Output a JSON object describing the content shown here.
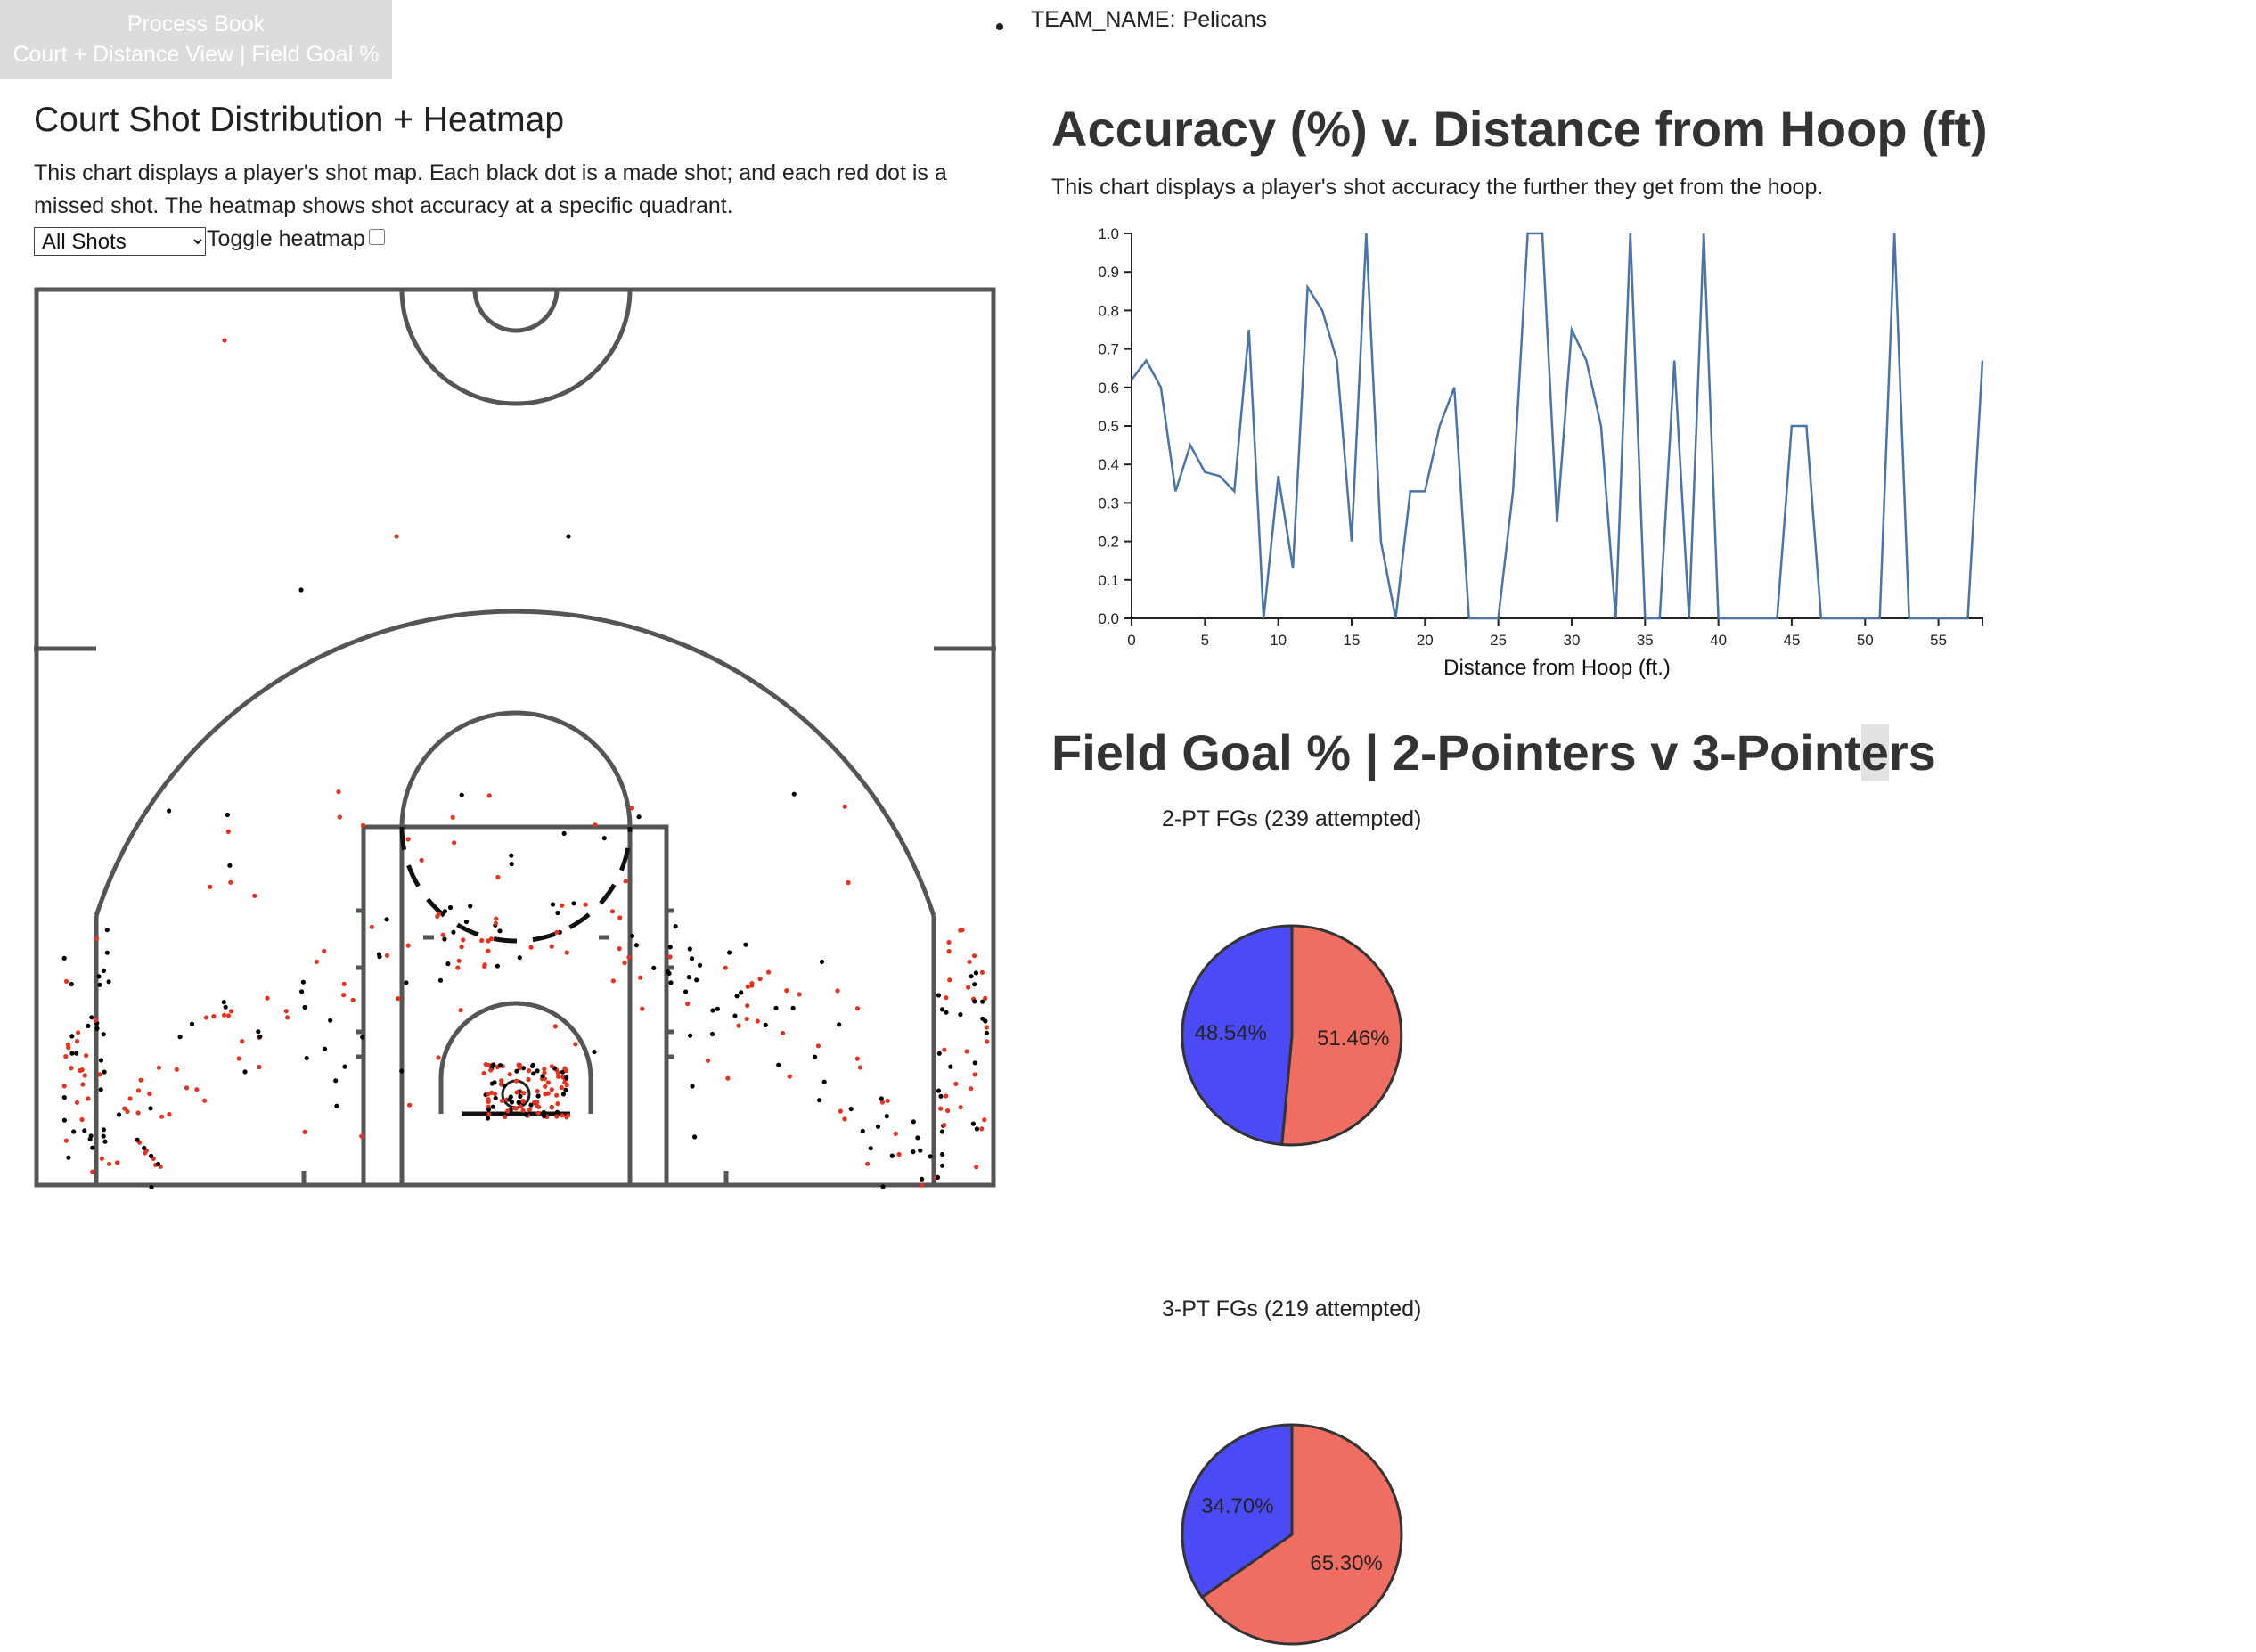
{
  "nav": {
    "process_book": "Process Book",
    "views_link": "Court + Distance View | Field Goal %"
  },
  "team": {
    "label": "TEAM_NAME:",
    "value": "Pelicans"
  },
  "court_section": {
    "title": "Court Shot Distribution + Heatmap",
    "description": "This chart displays a player's shot map. Each black dot is a made shot; and each red dot is a missed shot. The heatmap shows shot accuracy at a specific quadrant.",
    "filter_selected": "All Shots",
    "toggle_label": "Toggle heatmap",
    "toggle_checked": false,
    "made_color": "#000000",
    "missed_color": "#e8321e"
  },
  "accuracy_section": {
    "title": "Accuracy (%) v. Distance from Hoop (ft)",
    "description": "This chart displays a player's shot accuracy the further they get from the hoop."
  },
  "fg_section": {
    "title_main": "Field Goal % | 2-Pointers v 3-Point",
    "title_highlight": "e",
    "title_tail": "rs",
    "two_pt_title": "2-PT FGs (239 attempted)",
    "three_pt_title": "3-PT FGs (219 attempted)"
  },
  "chart_data": [
    {
      "type": "line",
      "xlabel": "Distance from Hoop (ft.)",
      "ylabel": "",
      "xlim": [
        0,
        58
      ],
      "ylim": [
        0,
        1
      ],
      "x_ticks": [
        "0",
        "5",
        "10",
        "15",
        "20",
        "25",
        "30",
        "35",
        "40",
        "45",
        "50",
        "55"
      ],
      "y_ticks": [
        "0.0",
        "0.1",
        "0.2",
        "0.3",
        "0.4",
        "0.5",
        "0.6",
        "0.7",
        "0.8",
        "0.9",
        "1.0"
      ],
      "color": "#4a74a8",
      "series": [
        {
          "x": [
            0,
            1,
            2,
            3,
            4,
            5,
            6,
            7,
            8,
            9,
            10,
            11,
            12,
            13,
            14,
            15,
            16,
            17,
            18,
            19,
            20,
            21,
            22,
            23,
            24,
            25,
            26,
            27,
            28,
            29,
            30,
            31,
            32,
            33,
            34,
            35,
            36,
            37,
            38,
            39,
            40,
            41,
            42,
            43,
            44,
            45,
            46,
            47,
            48,
            49,
            50,
            51,
            52,
            53,
            54,
            55,
            56,
            57,
            58
          ],
          "y": [
            0.62,
            0.67,
            0.6,
            0.33,
            0.45,
            0.38,
            0.37,
            0.33,
            0.75,
            0,
            0.37,
            0.13,
            0.86,
            0.8,
            0.67,
            0.2,
            1,
            0.2,
            0,
            0.33,
            0.33,
            0.5,
            0.6,
            0,
            0,
            0,
            0.33,
            1,
            1,
            0.25,
            0.75,
            0.67,
            0.5,
            0,
            1,
            0,
            0,
            0.67,
            0,
            1,
            0,
            0,
            0,
            0,
            0,
            0.5,
            0.5,
            0,
            0,
            0,
            0,
            0,
            1,
            0,
            0,
            0,
            0,
            0,
            0.67
          ]
        }
      ]
    },
    {
      "type": "pie",
      "title": "2-PT FGs (239 attempted)",
      "labels": [
        "48.54%",
        "51.46%"
      ],
      "values": [
        48.54,
        51.46
      ],
      "colors": [
        "#4b4bf5",
        "#ef6e61"
      ]
    },
    {
      "type": "pie",
      "title": "3-PT FGs (219 attempted)",
      "labels": [
        "34.70%",
        "65.30%"
      ],
      "values": [
        34.7,
        65.3
      ],
      "colors": [
        "#4b4bf5",
        "#ef6e61"
      ]
    }
  ]
}
